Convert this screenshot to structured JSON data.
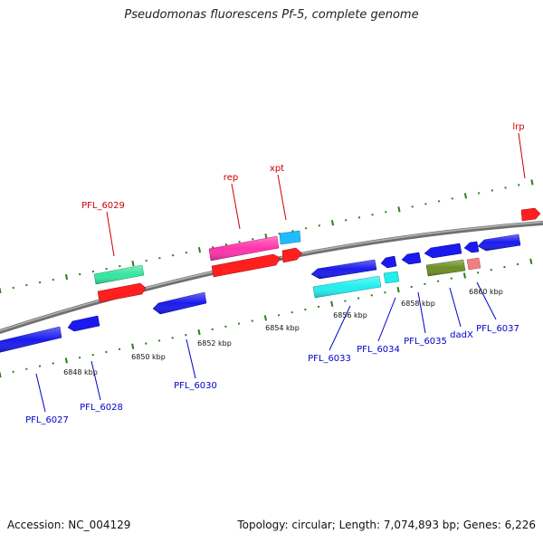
{
  "header": {
    "title": "Pseudomonas fluorescens Pf-5, complete genome"
  },
  "footer": {
    "accession": "Accession: NC_004129",
    "summary": "Topology: circular; Length: 7,074,893 bp; Genes: 6,226"
  },
  "colors": {
    "backbone": "#8a8a8a",
    "forward_tick": "#2d7d1a",
    "label_forward": "#cc0000",
    "label_reverse": "#0000cc"
  },
  "kbp_ticks": [
    "6848 kbp",
    "6850 kbp",
    "6852 kbp",
    "6854 kbp",
    "6856 kbp",
    "6858 kbp",
    "6860 kbp"
  ],
  "genes": {
    "forward": [
      {
        "label": "PFL_6029",
        "color": "#33e6a0"
      },
      {
        "label": "",
        "color": "#ff1f1f"
      },
      {
        "label": "rep",
        "color": "#ff33aa"
      },
      {
        "label": "",
        "color": "#ff1f1f"
      },
      {
        "label": "xpt",
        "color": "#22bbff"
      },
      {
        "label": "",
        "color": "#ff1f1f"
      },
      {
        "label": "lrp",
        "color": "#ff1f1f"
      }
    ],
    "reverse": [
      {
        "label": "PFL_6027",
        "color": "#1a1aee"
      },
      {
        "label": "PFL_6028",
        "color": "#1a1aee"
      },
      {
        "label": "PFL_6030",
        "color": "#1a1aee"
      },
      {
        "label": "",
        "color": "#1a1aee"
      },
      {
        "label": "PFL_6033",
        "color": "#22eeee"
      },
      {
        "label": "",
        "color": "#1a1aee"
      },
      {
        "label": "PFL_6034",
        "color": "#22eeee"
      },
      {
        "label": "",
        "color": "#1a1aee"
      },
      {
        "label": "PFL_6035",
        "color": "#1a1aee"
      },
      {
        "label": "",
        "color": "#1a1aee"
      },
      {
        "label": "dadX",
        "color": "#6b8e23"
      },
      {
        "label": "",
        "color": "#f08080"
      },
      {
        "label": "",
        "color": "#1a1aee"
      },
      {
        "label": "PFL_6037",
        "color": "#1a1aee"
      }
    ]
  }
}
